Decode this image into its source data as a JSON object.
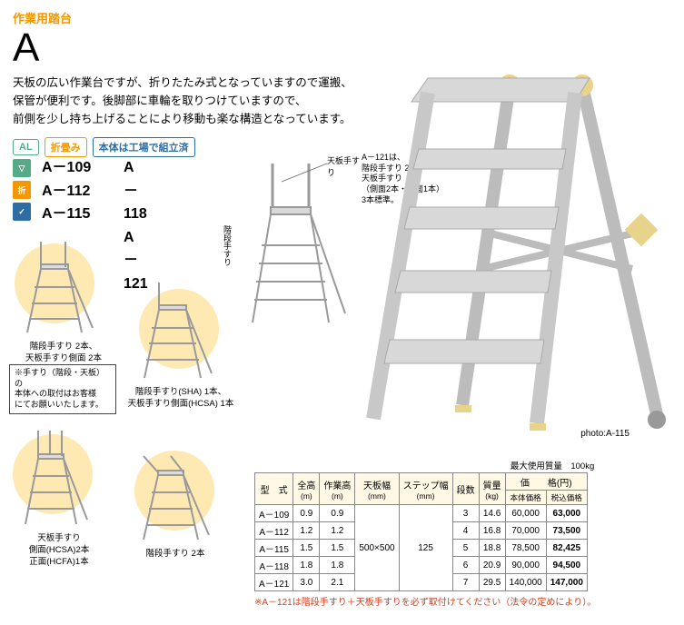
{
  "category": "作業用踏台",
  "model_series": "A",
  "description_lines": [
    "天板の広い作業台ですが、折りたたみ式となっていますので運搬、",
    "保管が便利です。後脚部に車輪を取りつけていますので、",
    "前側を少し持ち上げることにより移動も楽な構造となっています。"
  ],
  "badges": {
    "al": "AL",
    "fold": "折畳み",
    "factory": "本体は工場で組立済"
  },
  "icons": {
    "down": "▽",
    "fold": "折",
    "check": "✓"
  },
  "models_col1": [
    "A－109",
    "A－112",
    "A－115"
  ],
  "models_col2": [
    "A－118",
    "A－121"
  ],
  "center_callout_top": "天板手すり",
  "center_callout_side": "階段手すり",
  "a121_note": [
    "A－121は、",
    "階段手すり 2本、",
    "天板手すり",
    "（側面2本・正面1本）",
    "3本標準。"
  ],
  "thumb1_caption": [
    "階段手すり 2本、",
    "天板手すり側面 2本"
  ],
  "note_box": [
    "※手すり（階段・天板）の",
    "本体への取付はお客様",
    "にてお願いいたします。"
  ],
  "thumb2_caption": [
    "階段手すり(SHA) 1本、",
    "天板手すり側面(HCSA) 1本"
  ],
  "thumb3_caption": [
    "天板手すり",
    "側面(HCSA)2本",
    "正面(HCFA)1本"
  ],
  "thumb4_caption": [
    "階段手すり 2本"
  ],
  "photo_caption": "photo:A-115",
  "max_load": "最大使用質量　100kg",
  "table": {
    "headers": [
      {
        "main": "型　式",
        "sub": ""
      },
      {
        "main": "全高",
        "sub": "(m)"
      },
      {
        "main": "作業高",
        "sub": "(m)"
      },
      {
        "main": "天板幅",
        "sub": "(mm)"
      },
      {
        "main": "ステップ幅",
        "sub": "(mm)"
      },
      {
        "main": "段数",
        "sub": ""
      },
      {
        "main": "質量",
        "sub": "(kg)"
      },
      {
        "main": "価　　格(円)",
        "sub": "",
        "price": true
      }
    ],
    "price_sub": [
      "本体価格",
      "税込価格"
    ],
    "shared": {
      "platform_w": "500×500",
      "step_w": "125"
    },
    "rows": [
      {
        "model": "A－109",
        "h": "0.9",
        "wh": "0.9",
        "steps": "3",
        "mass": "14.6",
        "p1": "60,000",
        "p2": "63,000"
      },
      {
        "model": "A－112",
        "h": "1.2",
        "wh": "1.2",
        "steps": "4",
        "mass": "16.8",
        "p1": "70,000",
        "p2": "73,500"
      },
      {
        "model": "A－115",
        "h": "1.5",
        "wh": "1.5",
        "steps": "5",
        "mass": "18.8",
        "p1": "78,500",
        "p2": "82,425"
      },
      {
        "model": "A－118",
        "h": "1.8",
        "wh": "1.8",
        "steps": "6",
        "mass": "20.9",
        "p1": "90,000",
        "p2": "94,500"
      },
      {
        "model": "A－121",
        "h": "3.0",
        "wh": "2.1",
        "steps": "7",
        "mass": "29.5",
        "p1": "140,000",
        "p2": "147,000"
      }
    ]
  },
  "table_note": "※A－121は階段手すり＋天板手すりを必ず取付けてください（法令の定めにより）。",
  "colors": {
    "accent": "#f39800",
    "blue": "#2e6da4",
    "green": "#5a8a5a",
    "circle": "#ffe9b3",
    "th_bg": "#fff8e5",
    "note_red": "#d04020",
    "ladder": "#c8c8c8",
    "ladder_dark": "#9a9a9a",
    "brace": "#e8d38a"
  }
}
